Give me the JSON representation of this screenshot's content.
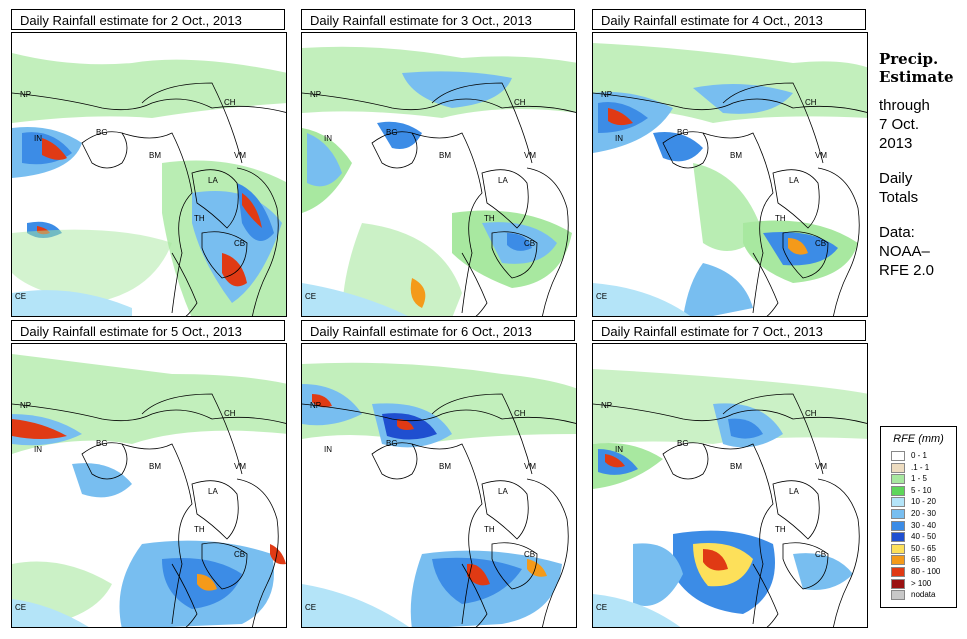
{
  "panels": [
    {
      "title": "Daily Rainfall estimate for  2 Oct., 2013"
    },
    {
      "title": "Daily Rainfall estimate for  3 Oct., 2013"
    },
    {
      "title": "Daily Rainfall estimate for  4 Oct., 2013"
    },
    {
      "title": "Daily Rainfall estimate for  5 Oct., 2013"
    },
    {
      "title": "Daily Rainfall estimate for  6 Oct., 2013"
    },
    {
      "title": "Daily Rainfall estimate for  7 Oct., 2013"
    }
  ],
  "country_labels": [
    "NP",
    "CH",
    "IN",
    "BG",
    "BM",
    "VM",
    "LA",
    "TH",
    "CB",
    "CE"
  ],
  "side": {
    "title_line1": "Precip.",
    "title_line2": "Estimate",
    "through": "through",
    "date_line1": "7 Oct.",
    "date_line2": "2013",
    "daily_line1": "Daily",
    "daily_line2": "Totals",
    "data_line1": "Data:",
    "data_line2": "NOAA–",
    "data_line3": "RFE 2.0"
  },
  "legend": {
    "title": "RFE (mm)",
    "items": [
      {
        "label": "0 - 1",
        "color": "#ffffff"
      },
      {
        "label": ".1 - 1",
        "color": "#eddcc0"
      },
      {
        "label": "1 - 5",
        "color": "#a8e8a0"
      },
      {
        "label": "5 - 10",
        "color": "#5ed65a"
      },
      {
        "label": "10 - 20",
        "color": "#b4e4f8"
      },
      {
        "label": "20 - 30",
        "color": "#78bef0"
      },
      {
        "label": "30 - 40",
        "color": "#3c8ce6"
      },
      {
        "label": "40 - 50",
        "color": "#1f4fd0"
      },
      {
        "label": "50 - 65",
        "color": "#fde05a"
      },
      {
        "label": "65 - 80",
        "color": "#f49a1a"
      },
      {
        "label": "80 - 100",
        "color": "#e03a14"
      },
      {
        "label": "> 100",
        "color": "#9a1212"
      },
      {
        "label": "nodata",
        "color": "#c8c8c8"
      }
    ]
  }
}
